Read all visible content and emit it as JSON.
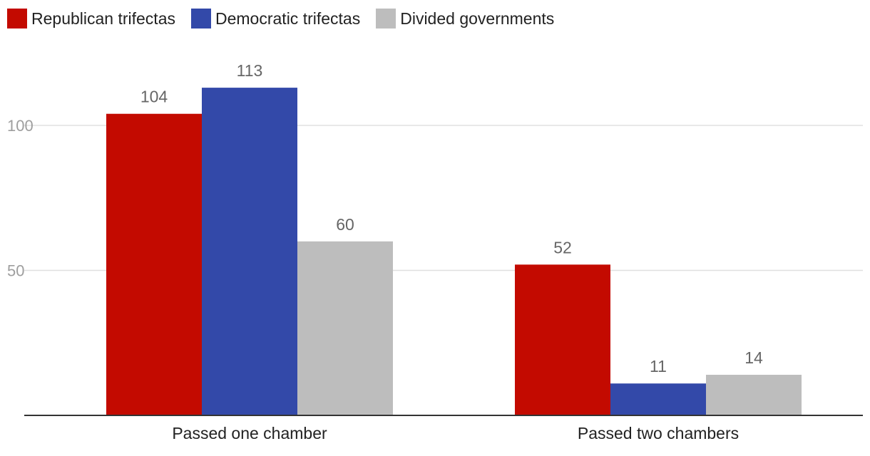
{
  "chart_data": {
    "type": "bar",
    "categories": [
      "Passed one chamber",
      "Passed two chambers"
    ],
    "series": [
      {
        "name": "Republican trifectas",
        "values": [
          104,
          52
        ],
        "color": "#c30a00"
      },
      {
        "name": "Democratic trifectas",
        "values": [
          113,
          11
        ],
        "color": "#3349a9"
      },
      {
        "name": "Divided governments",
        "values": [
          60,
          14
        ],
        "color": "#bdbdbd"
      }
    ],
    "ylim": [
      0,
      120
    ],
    "yticks": [
      50,
      100
    ],
    "grid": true,
    "legend": "top-left",
    "title": "",
    "xlabel": "",
    "ylabel": ""
  }
}
